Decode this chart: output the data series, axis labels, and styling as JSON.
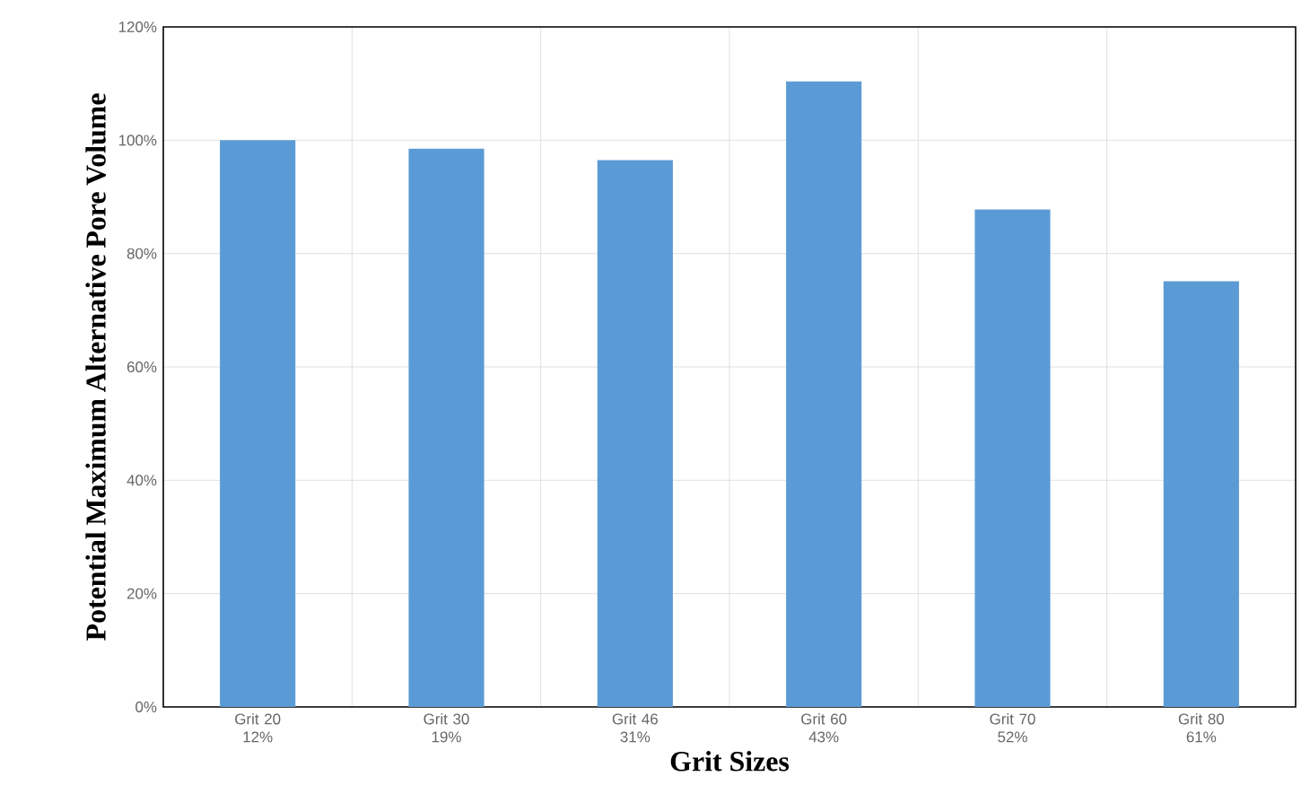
{
  "chart_data": {
    "type": "bar",
    "xlabel": "Grit Sizes",
    "ylabel": "Potential Maximum Alternative Pore Volume",
    "categories": [
      "Grit 20 12%",
      "Grit 30 19%",
      "Grit 46 31%",
      "Grit 60 43%",
      "Grit 70 52%",
      "Grit 80 61%"
    ],
    "values": [
      100,
      98.5,
      96.5,
      110.4,
      87.8,
      75.1
    ],
    "color": "#5b9bd5",
    "ylim": [
      0,
      120
    ],
    "yticks": [
      {
        "value": 0,
        "label": "0%"
      },
      {
        "value": 20,
        "label": "20%"
      },
      {
        "value": 40,
        "label": "40%"
      },
      {
        "value": 60,
        "label": "60%"
      },
      {
        "value": 80,
        "label": "80%"
      },
      {
        "value": 100,
        "label": "100%"
      },
      {
        "value": 120,
        "label": "120%"
      }
    ],
    "grid": true
  }
}
